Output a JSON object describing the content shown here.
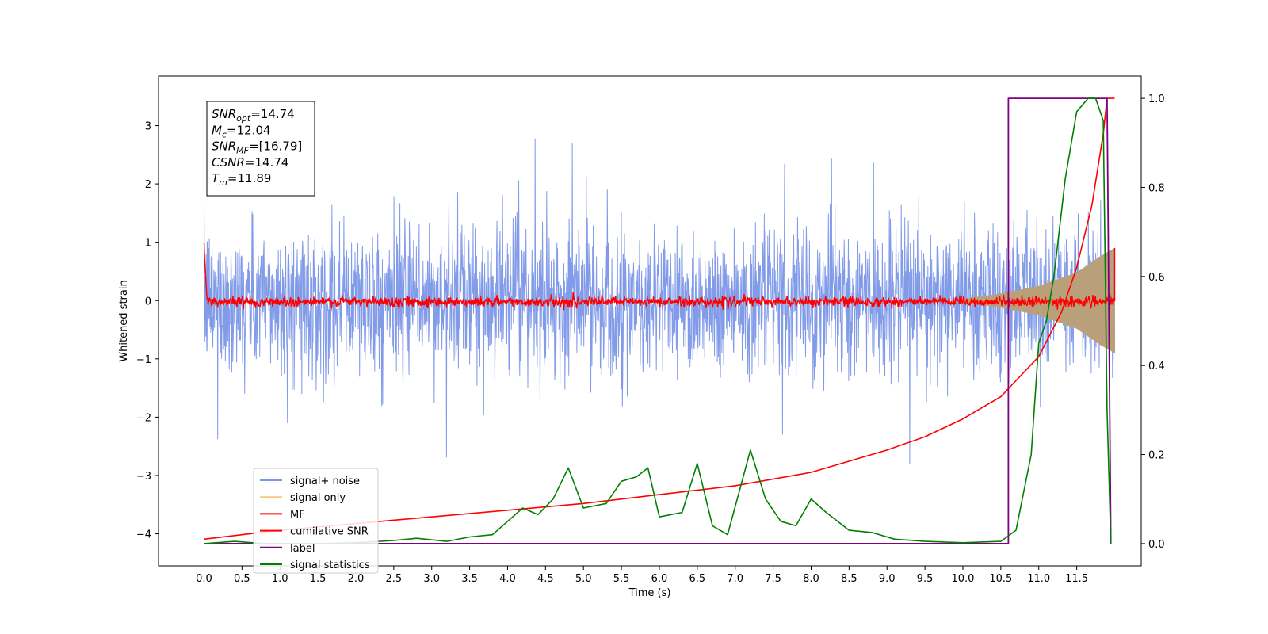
{
  "chart_data": {
    "type": "line",
    "xlabel": "Time (s)",
    "ylabel": "Whitened strain",
    "xlim": [
      -0.6,
      12.35
    ],
    "ylim_left": [
      -4.55,
      3.85
    ],
    "ylim_right": [
      -0.05,
      1.05
    ],
    "x_ticks": [
      "0.0",
      "0.5",
      "1.0",
      "1.5",
      "2.0",
      "2.5",
      "3.0",
      "3.5",
      "4.0",
      "4.5",
      "5.0",
      "5.5",
      "6.0",
      "6.5",
      "7.0",
      "7.5",
      "8.0",
      "8.5",
      "9.0",
      "9.5",
      "10.0",
      "10.5",
      "11.0",
      "11.5"
    ],
    "y_ticks_left": [
      "3",
      "2",
      "1",
      "0",
      "−1",
      "−2",
      "−3",
      "−4"
    ],
    "y_ticks_right": [
      "1.0",
      "0.8",
      "0.6",
      "0.4",
      "0.2",
      "0.0"
    ],
    "grid": false,
    "legend_position": "lower-left",
    "annotation": {
      "lines": [
        {
          "base": "SNR",
          "sub": "opt",
          "value": "=14.74"
        },
        {
          "base": "M",
          "sub": "c",
          "value": "=12.04"
        },
        {
          "base": "SNR",
          "sub": "MF",
          "value": "=[16.79]"
        },
        {
          "base": "CSNR",
          "sub": "",
          "value": "=14.74"
        },
        {
          "base": "T",
          "sub": "m",
          "value": "=11.89"
        }
      ]
    },
    "series": [
      {
        "name": "signal+ noise",
        "color": "#7b96e8",
        "axis": "left",
        "x_range": [
          0.0,
          12.0
        ],
        "typical_envelope": [
          -1.6,
          1.6
        ],
        "peak_envelope": [
          -2.8,
          3.4
        ]
      },
      {
        "name": "signal only",
        "color": "#f5c97a",
        "axis": "left",
        "note_fill_color": "#b9a07a",
        "x_range": [
          10.0,
          12.0
        ],
        "amplitude": [
          [
            10.0,
            0.03
          ],
          [
            10.5,
            0.12
          ],
          [
            11.0,
            0.25
          ],
          [
            11.5,
            0.48
          ],
          [
            11.8,
            0.75
          ],
          [
            12.0,
            0.9
          ]
        ]
      },
      {
        "name": "MF",
        "color": "#ff0000",
        "axis": "left",
        "x_range": [
          0.0,
          12.0
        ],
        "start_value": 1.0,
        "noise_amplitude": 0.08,
        "end_value": 0.9
      },
      {
        "name": "cumilative SNR",
        "color": "#ff0000",
        "axis": "right",
        "points": [
          [
            0.0,
            0.01
          ],
          [
            0.5,
            0.02
          ],
          [
            1.0,
            0.03
          ],
          [
            2.0,
            0.045
          ],
          [
            3.0,
            0.06
          ],
          [
            4.0,
            0.075
          ],
          [
            5.0,
            0.09
          ],
          [
            6.0,
            0.11
          ],
          [
            7.0,
            0.13
          ],
          [
            8.0,
            0.16
          ],
          [
            9.0,
            0.21
          ],
          [
            9.5,
            0.24
          ],
          [
            10.0,
            0.28
          ],
          [
            10.5,
            0.33
          ],
          [
            11.0,
            0.42
          ],
          [
            11.3,
            0.52
          ],
          [
            11.5,
            0.62
          ],
          [
            11.7,
            0.76
          ],
          [
            11.85,
            0.92
          ],
          [
            11.9,
            1.0
          ],
          [
            12.0,
            1.0
          ]
        ]
      },
      {
        "name": "label",
        "color": "#800080",
        "axis": "right",
        "points": [
          [
            0.0,
            0.0
          ],
          [
            10.6,
            0.0
          ],
          [
            10.6,
            1.0
          ],
          [
            11.9,
            1.0
          ],
          [
            11.95,
            0.0
          ]
        ]
      },
      {
        "name": "signal statistics",
        "color": "#008000",
        "axis": "right",
        "points": [
          [
            0.0,
            0.0
          ],
          [
            0.4,
            0.005
          ],
          [
            0.8,
            0.0
          ],
          [
            1.5,
            0.0
          ],
          [
            2.0,
            0.002
          ],
          [
            2.5,
            0.007
          ],
          [
            2.8,
            0.012
          ],
          [
            3.2,
            0.005
          ],
          [
            3.5,
            0.015
          ],
          [
            3.8,
            0.02
          ],
          [
            4.0,
            0.05
          ],
          [
            4.2,
            0.08
          ],
          [
            4.4,
            0.065
          ],
          [
            4.6,
            0.1
          ],
          [
            4.8,
            0.17
          ],
          [
            5.0,
            0.08
          ],
          [
            5.3,
            0.09
          ],
          [
            5.5,
            0.14
          ],
          [
            5.7,
            0.15
          ],
          [
            5.85,
            0.17
          ],
          [
            6.0,
            0.06
          ],
          [
            6.3,
            0.07
          ],
          [
            6.5,
            0.18
          ],
          [
            6.7,
            0.04
          ],
          [
            6.9,
            0.02
          ],
          [
            7.2,
            0.21
          ],
          [
            7.4,
            0.1
          ],
          [
            7.6,
            0.05
          ],
          [
            7.8,
            0.04
          ],
          [
            8.0,
            0.1
          ],
          [
            8.2,
            0.07
          ],
          [
            8.5,
            0.03
          ],
          [
            8.8,
            0.025
          ],
          [
            9.1,
            0.01
          ],
          [
            9.5,
            0.005
          ],
          [
            10.0,
            0.002
          ],
          [
            10.5,
            0.005
          ],
          [
            10.7,
            0.03
          ],
          [
            10.9,
            0.2
          ],
          [
            11.0,
            0.45
          ],
          [
            11.1,
            0.5
          ],
          [
            11.2,
            0.6
          ],
          [
            11.35,
            0.82
          ],
          [
            11.5,
            0.97
          ],
          [
            11.65,
            1.0
          ],
          [
            11.75,
            1.0
          ],
          [
            11.85,
            0.95
          ],
          [
            11.9,
            0.3
          ],
          [
            11.95,
            0.0
          ]
        ]
      }
    ]
  }
}
